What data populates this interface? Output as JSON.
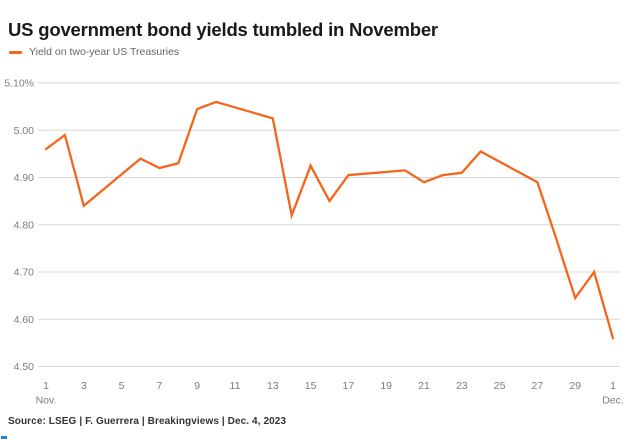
{
  "title": "US government bond yields tumbled in November",
  "legend": {
    "label": "Yield on two-year US Treasuries"
  },
  "source": "Source: LSEG | F. Guerrera | Breakingviews | Dec. 4, 2023",
  "colors": {
    "line": "#f4661b",
    "grid": "#d9d9d9",
    "axis_text": "#7b7d81",
    "title_text": "#1a1a1a",
    "legend_text": "#64666a",
    "source_text": "#333333",
    "logo_fragment": "#2a7fd4",
    "background": "#ffffff"
  },
  "chart_data": {
    "type": "line",
    "title": "US government bond yields tumbled in November",
    "xlabel": "",
    "ylabel": "",
    "ylim": [
      4.5,
      5.1
    ],
    "xlim_calendar_days": [
      1,
      31
    ],
    "grid": "horizontal",
    "legend_position": "top-left",
    "yticks": [
      {
        "value": 5.1,
        "label": "5.10%"
      },
      {
        "value": 5.0,
        "label": "5.00"
      },
      {
        "value": 4.9,
        "label": "4.90"
      },
      {
        "value": 4.8,
        "label": "4.80"
      },
      {
        "value": 4.7,
        "label": "4.70"
      },
      {
        "value": 4.6,
        "label": "4.60"
      },
      {
        "value": 4.5,
        "label": "4.50"
      }
    ],
    "xticks": [
      {
        "day": 1,
        "label": "1",
        "sub": "Nov."
      },
      {
        "day": 3,
        "label": "3"
      },
      {
        "day": 5,
        "label": "5"
      },
      {
        "day": 7,
        "label": "7"
      },
      {
        "day": 9,
        "label": "9"
      },
      {
        "day": 11,
        "label": "11"
      },
      {
        "day": 13,
        "label": "13"
      },
      {
        "day": 15,
        "label": "15"
      },
      {
        "day": 17,
        "label": "17"
      },
      {
        "day": 19,
        "label": "19"
      },
      {
        "day": 21,
        "label": "21"
      },
      {
        "day": 23,
        "label": "23"
      },
      {
        "day": 25,
        "label": "25"
      },
      {
        "day": 27,
        "label": "27"
      },
      {
        "day": 29,
        "label": "29"
      },
      {
        "day": 31,
        "label": "1",
        "sub": "Dec."
      }
    ],
    "series": [
      {
        "name": "Yield on two-year US Treasuries",
        "color": "#f4661b",
        "points": [
          {
            "date": "Nov. 1",
            "day": 1,
            "value": 4.96
          },
          {
            "date": "Nov. 2",
            "day": 2,
            "value": 4.99
          },
          {
            "date": "Nov. 3",
            "day": 3,
            "value": 4.84
          },
          {
            "date": "Nov. 6",
            "day": 6,
            "value": 4.94
          },
          {
            "date": "Nov. 7",
            "day": 7,
            "value": 4.92
          },
          {
            "date": "Nov. 8",
            "day": 8,
            "value": 4.93
          },
          {
            "date": "Nov. 9",
            "day": 9,
            "value": 5.045
          },
          {
            "date": "Nov. 10",
            "day": 10,
            "value": 5.06
          },
          {
            "date": "Nov. 13",
            "day": 13,
            "value": 5.025
          },
          {
            "date": "Nov. 14",
            "day": 14,
            "value": 4.82
          },
          {
            "date": "Nov. 15",
            "day": 15,
            "value": 4.925
          },
          {
            "date": "Nov. 16",
            "day": 16,
            "value": 4.85
          },
          {
            "date": "Nov. 17",
            "day": 17,
            "value": 4.905
          },
          {
            "date": "Nov. 20",
            "day": 20,
            "value": 4.915
          },
          {
            "date": "Nov. 21",
            "day": 21,
            "value": 4.89
          },
          {
            "date": "Nov. 22",
            "day": 22,
            "value": 4.905
          },
          {
            "date": "Nov. 23",
            "day": 23,
            "value": 4.91
          },
          {
            "date": "Nov. 24",
            "day": 24,
            "value": 4.955
          },
          {
            "date": "Nov. 27",
            "day": 27,
            "value": 4.89
          },
          {
            "date": "Nov. 28",
            "day": 28,
            "value": 4.77
          },
          {
            "date": "Nov. 29",
            "day": 29,
            "value": 4.645
          },
          {
            "date": "Nov. 30",
            "day": 30,
            "value": 4.7
          },
          {
            "date": "Dec. 1",
            "day": 31,
            "value": 4.56
          }
        ]
      }
    ]
  }
}
